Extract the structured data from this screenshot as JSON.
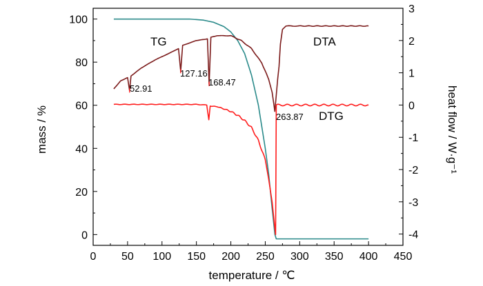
{
  "chart_data": {
    "type": "line",
    "xlabel": "temperature / ℃",
    "ylabel_left": "mass / %",
    "ylabel_right": "heat flow / W·g⁻¹",
    "x_ticks": [
      0,
      50,
      100,
      150,
      200,
      250,
      300,
      350,
      400,
      450
    ],
    "y_left_ticks": [
      0,
      20,
      40,
      60,
      80,
      100
    ],
    "y_right_ticks": [
      3,
      2,
      1,
      0,
      -1,
      -2,
      -3,
      -4
    ],
    "xlim": [
      0,
      450
    ],
    "ylim_left": [
      -5,
      105
    ],
    "ylim_right": [
      -4.35,
      3.0
    ],
    "series": [
      {
        "name": "TG",
        "axis": "left",
        "color": "#2a8a8a",
        "x": [
          30,
          140,
          160,
          175,
          190,
          200,
          210,
          220,
          230,
          240,
          250,
          255,
          260,
          264,
          266,
          270,
          400
        ],
        "y": [
          100,
          100,
          99.5,
          98.5,
          96.5,
          94,
          90,
          84,
          74,
          60,
          40,
          28,
          12,
          0,
          -2,
          -2,
          -2
        ]
      },
      {
        "name": "DTA",
        "axis": "right",
        "color": "#7b1a1a",
        "x": [
          30,
          40,
          50,
          52.91,
          55,
          70,
          90,
          110,
          124,
          127.16,
          130,
          150,
          166,
          168.47,
          171,
          180,
          200,
          215,
          230,
          245,
          255,
          260,
          263.87,
          266,
          268,
          270,
          272,
          275,
          280,
          300,
          400
        ],
        "y": [
          0.5,
          0.75,
          0.85,
          0.45,
          0.9,
          1.15,
          1.4,
          1.6,
          1.75,
          1.05,
          1.85,
          2.0,
          2.05,
          0.65,
          2.1,
          2.15,
          2.15,
          2.0,
          1.75,
          1.3,
          0.8,
          0.4,
          -0.2,
          0.3,
          0.8,
          1.2,
          1.9,
          2.35,
          2.45,
          2.45,
          2.45
        ]
      },
      {
        "name": "DTG",
        "axis": "right",
        "color": "#ff1a1a",
        "x": [
          30,
          150,
          165,
          168,
          170,
          180,
          190,
          200,
          210,
          220,
          230,
          240,
          250,
          255,
          260,
          263,
          265,
          266,
          400
        ],
        "y": [
          0.02,
          0.02,
          0.0,
          -0.45,
          -0.03,
          -0.05,
          -0.12,
          -0.2,
          -0.32,
          -0.48,
          -0.7,
          -1.1,
          -1.7,
          -2.3,
          -3.0,
          -3.6,
          -4.0,
          0.0,
          0.0
        ]
      }
    ],
    "annotations": [
      "52.91",
      "127.16",
      "168.47",
      "263.87"
    ]
  }
}
